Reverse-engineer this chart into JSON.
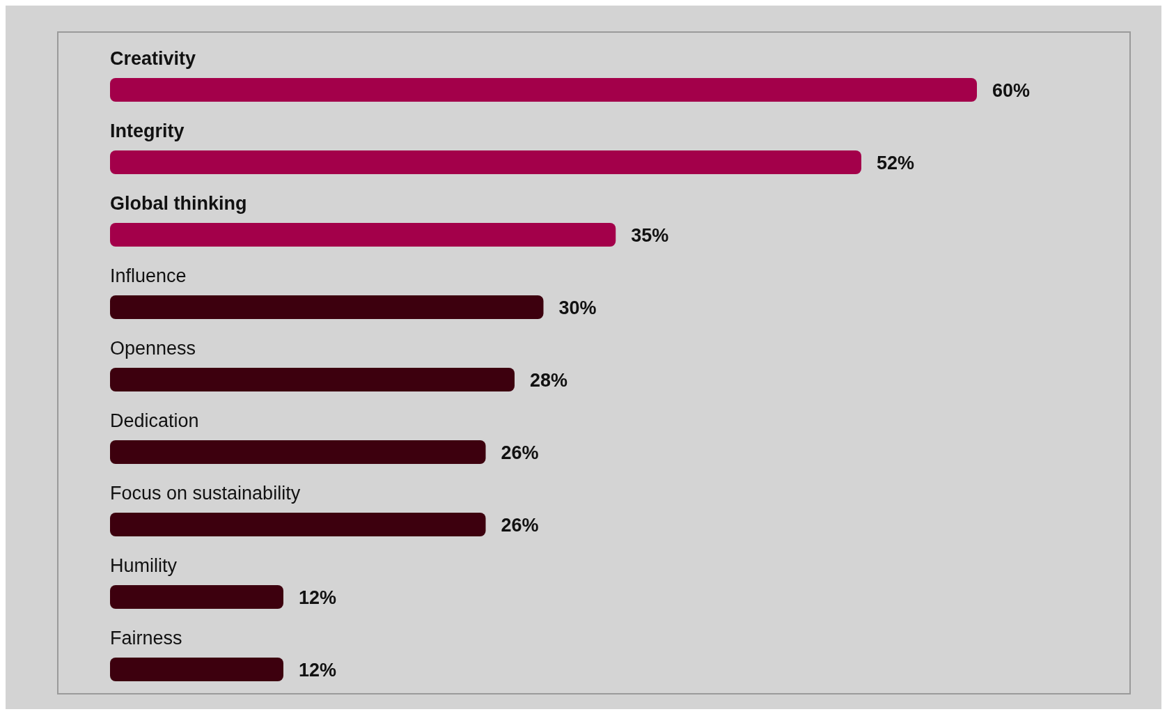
{
  "chart_data": {
    "type": "bar",
    "orientation": "horizontal",
    "categories": [
      "Creativity",
      "Integrity",
      "Global thinking",
      "Influence",
      "Openness",
      "Dedication",
      "Focus on sustainability",
      "Humility",
      "Fairness"
    ],
    "values": [
      60,
      52,
      35,
      30,
      28,
      26,
      26,
      12,
      12
    ],
    "value_labels": [
      "60%",
      "52%",
      "35%",
      "30%",
      "28%",
      "26%",
      "26%",
      "12%",
      "12%"
    ],
    "colors": [
      "#a3004a",
      "#a3004a",
      "#a3004a",
      "#3d000e",
      "#3d000e",
      "#3d000e",
      "#3d000e",
      "#3d000e",
      "#3d000e"
    ],
    "data_labels": false
  }
}
